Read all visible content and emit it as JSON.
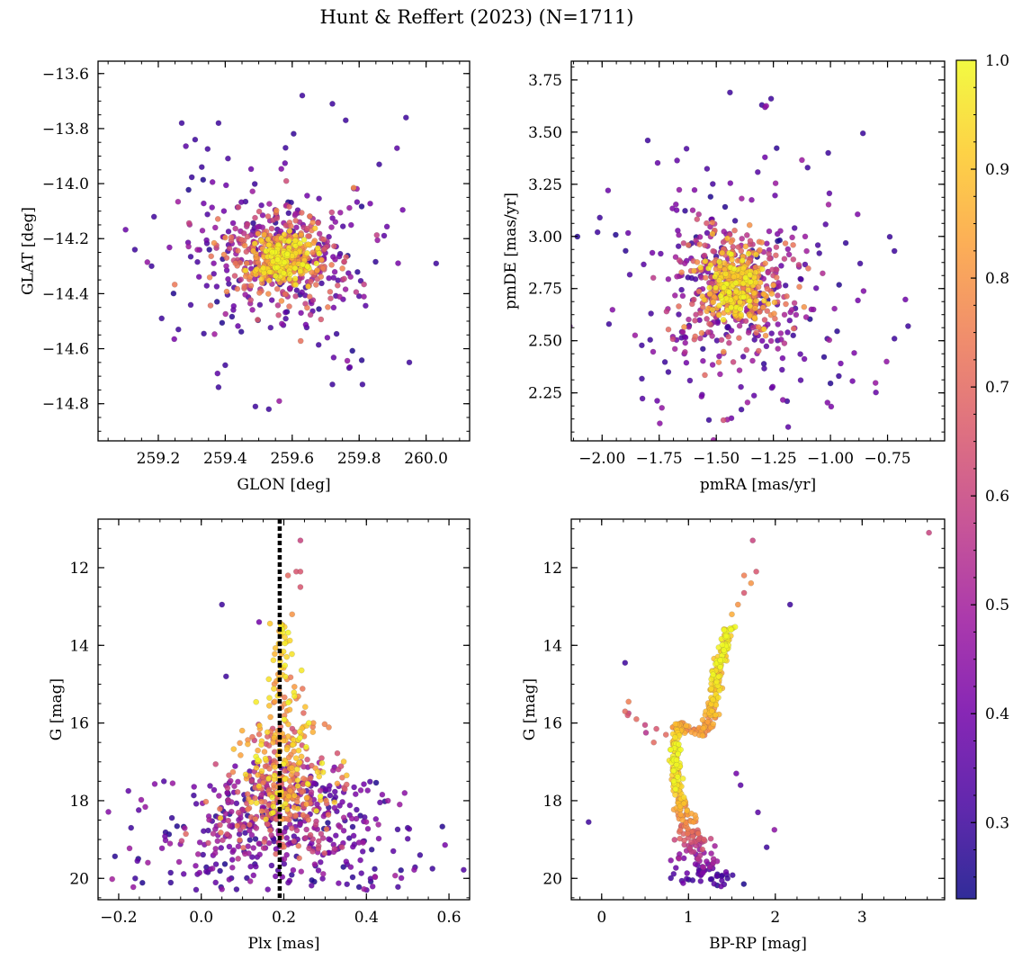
{
  "figure": {
    "title": "Hunt & Reffert (2023) (N=1711)"
  },
  "colorbar": {
    "range": [
      0.23,
      1.0
    ],
    "ticks": [
      0.3,
      0.4,
      0.5,
      0.6,
      0.7,
      0.8,
      0.9,
      1.0
    ],
    "tick_labels": [
      "0.3",
      "0.4",
      "0.5",
      "0.6",
      "0.7",
      "0.8",
      "0.9",
      "1.0"
    ],
    "colormap": "plasma",
    "colormap_stops": [
      "#0d0887",
      "#46039f",
      "#7201a8",
      "#9c179e",
      "#bd3786",
      "#d8576b",
      "#ed7953",
      "#fb9f3a",
      "#fdca26",
      "#f0f921"
    ]
  },
  "chart_data": [
    {
      "id": "glon-glat",
      "type": "scatter",
      "title": "",
      "xlabel": "GLON [deg]",
      "ylabel": "GLAT [deg]",
      "xlim": [
        259.02,
        260.13
      ],
      "ylim": [
        -14.935,
        -13.555
      ],
      "xticks": [
        259.2,
        259.4,
        259.6,
        259.8,
        260.0
      ],
      "xtick_labels": [
        "259.2",
        "259.4",
        "259.6",
        "259.8",
        "260.0"
      ],
      "yticks": [
        -14.8,
        -14.6,
        -14.4,
        -14.2,
        -14.0,
        -13.8,
        -13.6
      ],
      "ytick_labels": [
        "−14.8",
        "−14.6",
        "−14.4",
        "−14.2",
        "−14.0",
        "−13.8",
        "−13.6"
      ],
      "grid": false,
      "color_by": "membership probability",
      "clusters": [
        {
          "center": [
            259.57,
            -14.27
          ],
          "sd": [
            0.045,
            0.045
          ],
          "n": 230,
          "c_range": [
            0.78,
            1.0
          ]
        },
        {
          "center": [
            259.57,
            -14.27
          ],
          "sd": [
            0.09,
            0.09
          ],
          "n": 330,
          "c_range": [
            0.45,
            0.8
          ]
        },
        {
          "center": [
            259.56,
            -14.27
          ],
          "sd": [
            0.16,
            0.16
          ],
          "n": 230,
          "c_range": [
            0.25,
            0.5
          ]
        }
      ],
      "points": [
        [
          259.63,
          -13.68,
          0.3
        ],
        [
          259.72,
          -13.71,
          0.3
        ],
        [
          259.94,
          -13.76,
          0.3
        ],
        [
          259.27,
          -13.78,
          0.3
        ],
        [
          259.38,
          -13.78,
          0.3
        ],
        [
          259.76,
          -13.77,
          0.3
        ],
        [
          259.31,
          -13.84,
          0.3
        ],
        [
          259.58,
          -13.87,
          0.3
        ],
        [
          259.86,
          -13.93,
          0.3
        ],
        [
          259.13,
          -14.24,
          0.3
        ],
        [
          260.03,
          -14.29,
          0.3
        ],
        [
          259.18,
          -14.3,
          0.3
        ],
        [
          259.21,
          -14.49,
          0.3
        ],
        [
          259.26,
          -14.53,
          0.3
        ],
        [
          259.4,
          -14.66,
          0.3
        ],
        [
          259.77,
          -14.67,
          0.3
        ],
        [
          259.95,
          -14.65,
          0.3
        ],
        [
          259.38,
          -14.74,
          0.3
        ],
        [
          259.72,
          -14.73,
          0.3
        ],
        [
          259.49,
          -14.81,
          0.3
        ],
        [
          259.53,
          -14.82,
          0.3
        ],
        [
          259.33,
          -13.94,
          0.3
        ],
        [
          259.81,
          -14.73,
          0.3
        ]
      ]
    },
    {
      "id": "pmra-pmde",
      "type": "scatter",
      "title": "",
      "xlabel": "pmRA [mas/yr]",
      "ylabel": "pmDE [mas/yr]",
      "xlim": [
        -2.135,
        -0.5
      ],
      "ylim": [
        2.02,
        3.84
      ],
      "xticks": [
        -2.0,
        -1.75,
        -1.5,
        -1.25,
        -1.0,
        -0.75
      ],
      "xtick_labels": [
        "−2.00",
        "−1.75",
        "−1.50",
        "−1.25",
        "−1.00",
        "−0.75"
      ],
      "yticks": [
        2.25,
        2.5,
        2.75,
        3.0,
        3.25,
        3.5,
        3.75
      ],
      "ytick_labels": [
        "2.25",
        "2.50",
        "2.75",
        "3.00",
        "3.25",
        "3.50",
        "3.75"
      ],
      "grid": false,
      "color_by": "membership probability",
      "clusters": [
        {
          "center": [
            -1.42,
            2.76
          ],
          "sd": [
            0.06,
            0.08
          ],
          "n": 230,
          "c_range": [
            0.78,
            1.0
          ]
        },
        {
          "center": [
            -1.42,
            2.76
          ],
          "sd": [
            0.13,
            0.16
          ],
          "n": 330,
          "c_range": [
            0.45,
            0.8
          ]
        },
        {
          "center": [
            -1.4,
            2.75
          ],
          "sd": [
            0.25,
            0.3
          ],
          "n": 260,
          "c_range": [
            0.25,
            0.5
          ]
        }
      ],
      "points": [
        [
          -1.44,
          3.69,
          0.3
        ],
        [
          -1.26,
          3.66,
          0.3
        ],
        [
          -1.3,
          3.63,
          0.3
        ],
        [
          -1.8,
          3.46,
          0.3
        ],
        [
          -2.01,
          3.09,
          0.3
        ],
        [
          -2.02,
          3.02,
          0.3
        ],
        [
          -0.72,
          2.93,
          0.3
        ],
        [
          -0.66,
          2.57,
          0.3
        ],
        [
          -0.72,
          2.51,
          0.3
        ],
        [
          -1.39,
          2.17,
          0.3
        ],
        [
          -1.71,
          2.35,
          0.3
        ],
        [
          -1.19,
          2.21,
          0.3
        ],
        [
          -1.97,
          2.58,
          0.3
        ],
        [
          -1.01,
          3.4,
          0.3
        ],
        [
          -1.1,
          3.33,
          0.3
        ],
        [
          -0.87,
          2.87,
          0.3
        ]
      ]
    },
    {
      "id": "plx-g",
      "type": "scatter",
      "title": "",
      "xlabel": "Plx [mas]",
      "ylabel": "G [mag]",
      "xlim": [
        -0.25,
        0.65
      ],
      "ylim": [
        20.55,
        10.75
      ],
      "y_inverted": true,
      "xticks": [
        -0.2,
        0.0,
        0.2,
        0.4,
        0.6
      ],
      "xtick_labels": [
        "−0.2",
        "0.0",
        "0.2",
        "0.4",
        "0.6"
      ],
      "yticks": [
        12,
        14,
        16,
        18,
        20
      ],
      "ytick_labels": [
        "12",
        "14",
        "16",
        "18",
        "20"
      ],
      "grid": false,
      "color_by": "membership probability",
      "reference_line": {
        "x": 0.19,
        "style": "dotted",
        "color": "#000000"
      },
      "cmd_bins": [
        {
          "g": [
            13.4,
            14.6
          ],
          "sd": 0.022,
          "n": 30,
          "c_range": [
            0.85,
            1.0
          ]
        },
        {
          "g": [
            14.6,
            16.0
          ],
          "sd": 0.03,
          "n": 40,
          "c_range": [
            0.7,
            1.0
          ]
        },
        {
          "g": [
            16.0,
            18.5
          ],
          "sd": 0.045,
          "n": 220,
          "c_range": [
            0.6,
            1.0
          ]
        },
        {
          "g": [
            17.0,
            19.5
          ],
          "sd": 0.07,
          "n": 230,
          "c_range": [
            0.35,
            0.75
          ]
        },
        {
          "g": [
            17.5,
            20.3
          ],
          "sd": 0.14,
          "n": 320,
          "c_range": [
            0.25,
            0.5
          ]
        }
      ],
      "points": [
        [
          0.24,
          11.3,
          0.6
        ],
        [
          0.23,
          12.1,
          0.65
        ],
        [
          0.24,
          12.1,
          0.65
        ],
        [
          0.21,
          12.2,
          0.7
        ],
        [
          0.24,
          12.5,
          0.65
        ],
        [
          0.22,
          13.2,
          0.8
        ],
        [
          0.05,
          12.95,
          0.3
        ],
        [
          0.14,
          13.4,
          0.4
        ],
        [
          0.06,
          14.8,
          0.3
        ],
        [
          -0.16,
          20.0,
          0.3
        ],
        [
          0.56,
          19.75,
          0.3
        ],
        [
          0.53,
          19.4,
          0.3
        ],
        [
          -0.17,
          18.7,
          0.3
        ],
        [
          0.5,
          18.7,
          0.3
        ]
      ]
    },
    {
      "id": "bprp-g",
      "type": "scatter",
      "title": "",
      "xlabel": "BP-RP [mag]",
      "ylabel": "G [mag]",
      "xlim": [
        -0.35,
        3.95
      ],
      "ylim": [
        20.55,
        10.75
      ],
      "y_inverted": true,
      "xticks": [
        0,
        1,
        2,
        3
      ],
      "xtick_labels": [
        "0",
        "1",
        "2",
        "3"
      ],
      "yticks": [
        12,
        14,
        16,
        18,
        20
      ],
      "ytick_labels": [
        "12",
        "14",
        "16",
        "18",
        "20"
      ],
      "grid": false,
      "color_by": "membership probability",
      "sequence": [
        [
          1.45,
          13.6,
          1.0
        ],
        [
          1.42,
          14.0,
          0.95
        ],
        [
          1.35,
          14.5,
          0.95
        ],
        [
          1.32,
          15.0,
          0.9
        ],
        [
          1.27,
          15.6,
          0.85
        ],
        [
          1.25,
          16.0,
          0.8
        ],
        [
          1.1,
          16.3,
          0.8
        ],
        [
          0.9,
          16.0,
          0.8
        ],
        [
          0.85,
          16.6,
          0.95
        ],
        [
          0.85,
          17.2,
          0.95
        ],
        [
          0.88,
          17.8,
          0.9
        ],
        [
          0.95,
          18.4,
          0.8
        ],
        [
          1.02,
          18.9,
          0.65
        ],
        [
          1.1,
          19.4,
          0.5
        ],
        [
          1.2,
          19.9,
          0.35
        ],
        [
          1.28,
          20.2,
          0.3
        ]
      ],
      "points": [
        [
          3.77,
          11.1,
          0.6
        ],
        [
          1.74,
          11.3,
          0.6
        ],
        [
          1.78,
          12.1,
          0.65
        ],
        [
          1.64,
          12.2,
          0.75
        ],
        [
          1.72,
          12.4,
          0.8
        ],
        [
          1.64,
          12.65,
          0.65
        ],
        [
          1.57,
          12.95,
          0.8
        ],
        [
          1.5,
          13.2,
          0.85
        ],
        [
          2.17,
          12.95,
          0.3
        ],
        [
          1.49,
          13.6,
          1.0
        ],
        [
          1.43,
          13.6,
          0.9
        ],
        [
          0.27,
          14.45,
          0.3
        ],
        [
          0.31,
          15.45,
          0.75
        ],
        [
          0.27,
          15.7,
          0.7
        ],
        [
          0.3,
          15.8,
          0.65
        ],
        [
          0.4,
          15.9,
          0.7
        ],
        [
          0.5,
          16.05,
          0.6
        ],
        [
          0.63,
          16.15,
          0.65
        ],
        [
          0.74,
          16.3,
          0.7
        ],
        [
          0.6,
          16.5,
          0.7
        ],
        [
          0.51,
          16.25,
          0.55
        ],
        [
          0.31,
          15.75,
          0.6
        ],
        [
          -0.15,
          18.55,
          0.3
        ],
        [
          1.99,
          18.75,
          0.45
        ],
        [
          1.8,
          18.3,
          0.35
        ],
        [
          1.9,
          19.2,
          0.3
        ],
        [
          1.6,
          17.6,
          0.35
        ],
        [
          1.55,
          17.3,
          0.4
        ],
        [
          0.87,
          17.6,
          0.9
        ],
        [
          0.85,
          17.7,
          1.0
        ],
        [
          0.88,
          16.8,
          1.0
        ]
      ]
    }
  ]
}
